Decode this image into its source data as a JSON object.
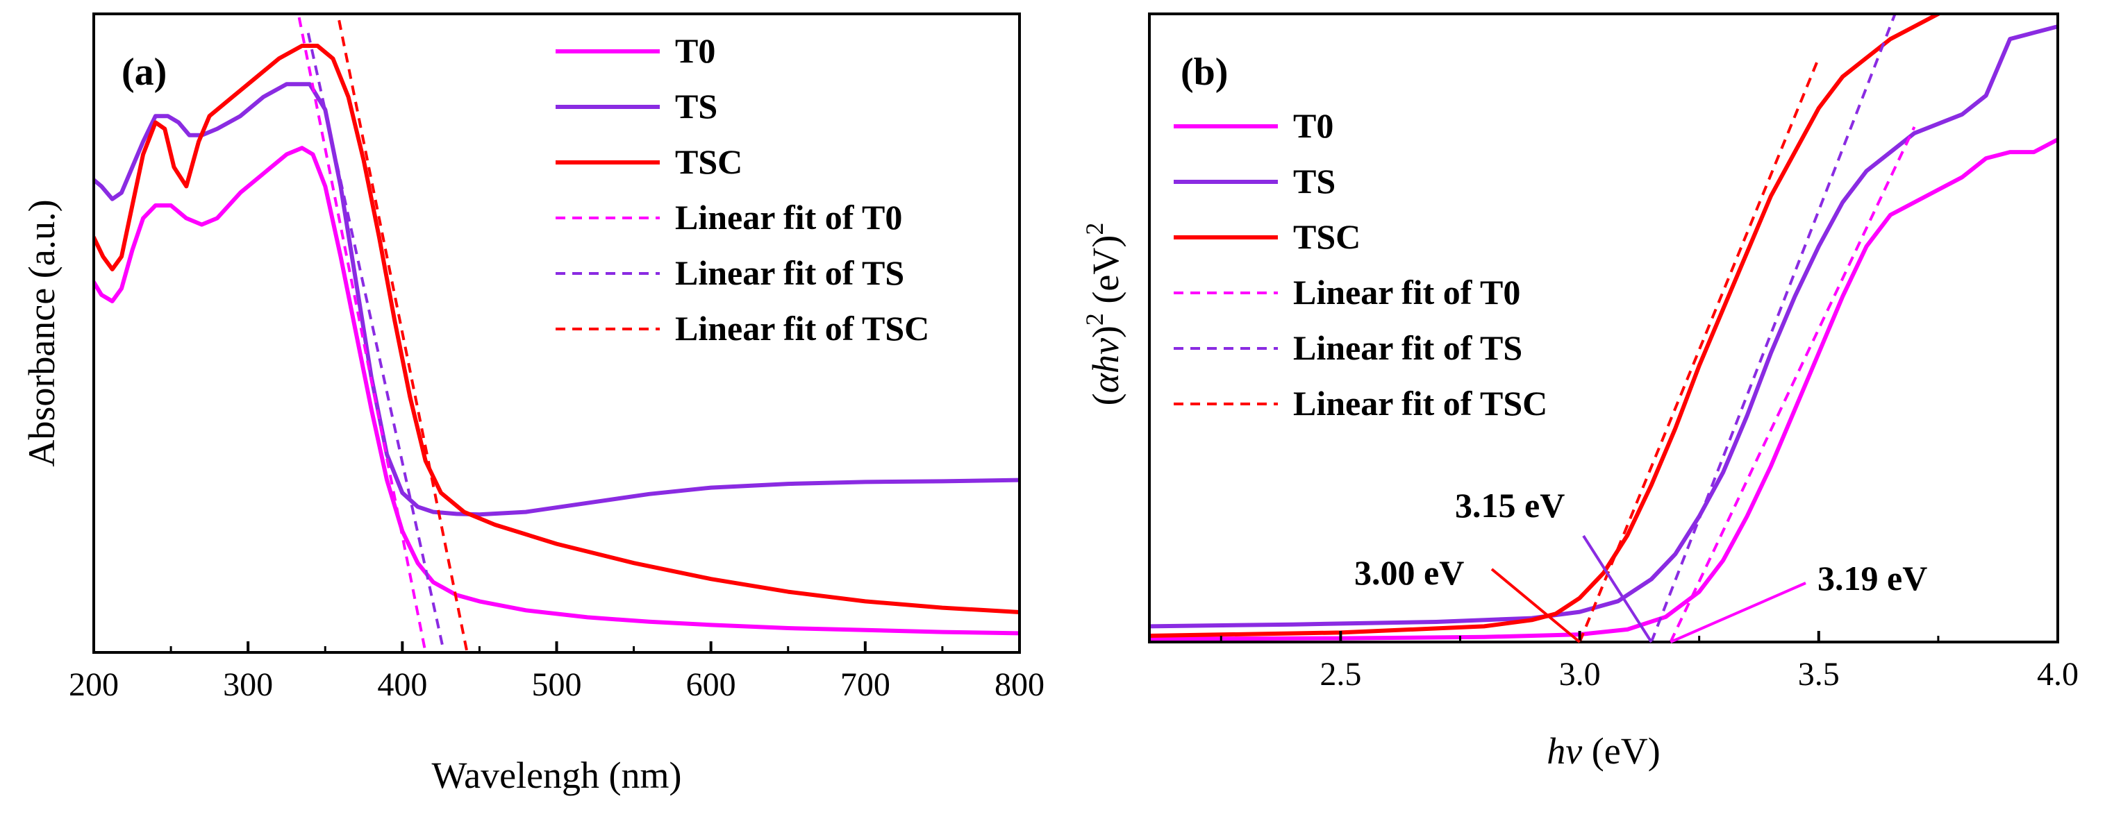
{
  "chart_data": [
    {
      "panel_label": "(a)",
      "type": "line",
      "title": "",
      "xlabel": "Wavelengh (nm)",
      "ylabel": "Absorbance (a.u.)",
      "xlim": [
        200,
        800
      ],
      "ylim": [
        0,
        1.0
      ],
      "xticks": [
        200,
        300,
        400,
        500,
        600,
        700,
        800
      ],
      "x_tick_labels": [
        "200",
        "300",
        "400",
        "500",
        "600",
        "700",
        "800"
      ],
      "y_ticks_shown": false,
      "grid": false,
      "legend_position": "top-right",
      "series": [
        {
          "name": "T0",
          "color": "#ff00ff",
          "style": "solid",
          "x": [
            200,
            205,
            212,
            218,
            225,
            232,
            240,
            250,
            260,
            270,
            280,
            295,
            310,
            325,
            335,
            342,
            350,
            360,
            370,
            380,
            390,
            400,
            410,
            420,
            435,
            450,
            480,
            520,
            560,
            600,
            650,
            700,
            750,
            800
          ],
          "y": [
            0.58,
            0.56,
            0.55,
            0.57,
            0.63,
            0.68,
            0.7,
            0.7,
            0.68,
            0.67,
            0.68,
            0.72,
            0.75,
            0.78,
            0.79,
            0.78,
            0.73,
            0.62,
            0.5,
            0.38,
            0.27,
            0.19,
            0.14,
            0.11,
            0.09,
            0.08,
            0.066,
            0.055,
            0.048,
            0.043,
            0.038,
            0.035,
            0.032,
            0.03
          ]
        },
        {
          "name": "TS",
          "color": "#8a2be2",
          "style": "solid",
          "x": [
            200,
            205,
            212,
            218,
            225,
            232,
            240,
            248,
            255,
            262,
            270,
            280,
            295,
            310,
            325,
            340,
            350,
            360,
            370,
            380,
            390,
            400,
            410,
            420,
            435,
            450,
            480,
            520,
            560,
            600,
            650,
            700,
            750,
            800
          ],
          "y": [
            0.74,
            0.73,
            0.71,
            0.72,
            0.76,
            0.8,
            0.84,
            0.84,
            0.83,
            0.81,
            0.81,
            0.82,
            0.84,
            0.87,
            0.89,
            0.89,
            0.85,
            0.73,
            0.58,
            0.43,
            0.31,
            0.25,
            0.228,
            0.22,
            0.217,
            0.216,
            0.22,
            0.234,
            0.248,
            0.258,
            0.264,
            0.267,
            0.268,
            0.27
          ]
        },
        {
          "name": "TSC",
          "color": "#ff0000",
          "style": "solid",
          "x": [
            200,
            206,
            212,
            218,
            225,
            232,
            240,
            246,
            252,
            260,
            268,
            275,
            290,
            305,
            320,
            335,
            345,
            355,
            365,
            375,
            385,
            395,
            405,
            415,
            425,
            440,
            460,
            500,
            550,
            600,
            650,
            700,
            750,
            800
          ],
          "y": [
            0.65,
            0.62,
            0.6,
            0.62,
            0.7,
            0.78,
            0.83,
            0.82,
            0.76,
            0.73,
            0.8,
            0.84,
            0.87,
            0.9,
            0.93,
            0.95,
            0.95,
            0.93,
            0.87,
            0.77,
            0.65,
            0.52,
            0.4,
            0.3,
            0.25,
            0.22,
            0.2,
            0.17,
            0.14,
            0.115,
            0.095,
            0.08,
            0.07,
            0.063
          ]
        },
        {
          "name": "Linear fit of T0",
          "color": "#ff00ff",
          "style": "dashed",
          "x": [
            331,
            415
          ],
          "y": [
            1.02,
            0.0
          ]
        },
        {
          "name": "Linear fit of TS",
          "color": "#8a2be2",
          "style": "dashed",
          "x": [
            339,
            427
          ],
          "y": [
            0.97,
            0.0
          ]
        },
        {
          "name": "Linear fit of TSC",
          "color": "#ff0000",
          "style": "dashed",
          "x": [
            359,
            442
          ],
          "y": [
            0.99,
            0.0
          ]
        }
      ]
    },
    {
      "panel_label": "(b)",
      "type": "line",
      "title": "",
      "xlabel_italic": "hv",
      "xlabel_rest": " (eV)",
      "ylabel_open": "(",
      "ylabel_alpha": "α",
      "ylabel_hv": "hv",
      "ylabel_close": ")",
      "ylabel_exp1": "2",
      "ylabel_units": " (eV)",
      "ylabel_exp2": "2",
      "xlim": [
        2.1,
        4.0
      ],
      "ylim": [
        0,
        1.0
      ],
      "xticks": [
        2.5,
        3.0,
        3.5,
        4.0
      ],
      "x_tick_labels": [
        "2.5",
        "3.0",
        "3.5",
        "4.0"
      ],
      "y_ticks_shown": false,
      "grid": false,
      "legend_position": "top-left",
      "series": [
        {
          "name": "T0",
          "color": "#ff00ff",
          "style": "solid",
          "x": [
            2.1,
            2.5,
            2.8,
            3.0,
            3.1,
            3.18,
            3.25,
            3.3,
            3.35,
            3.4,
            3.45,
            3.5,
            3.55,
            3.6,
            3.65,
            3.7,
            3.75,
            3.8,
            3.85,
            3.9,
            3.95,
            4.0
          ],
          "y": [
            0.005,
            0.006,
            0.008,
            0.012,
            0.02,
            0.04,
            0.08,
            0.13,
            0.2,
            0.28,
            0.37,
            0.46,
            0.55,
            0.63,
            0.68,
            0.7,
            0.72,
            0.74,
            0.77,
            0.78,
            0.78,
            0.8
          ]
        },
        {
          "name": "TS",
          "color": "#8a2be2",
          "style": "solid",
          "x": [
            2.1,
            2.4,
            2.7,
            2.9,
            3.0,
            3.08,
            3.15,
            3.2,
            3.25,
            3.3,
            3.35,
            3.4,
            3.45,
            3.5,
            3.55,
            3.6,
            3.65,
            3.7,
            3.8,
            3.85,
            3.9,
            3.95,
            4.0
          ],
          "y": [
            0.025,
            0.028,
            0.032,
            0.038,
            0.048,
            0.065,
            0.1,
            0.14,
            0.2,
            0.27,
            0.36,
            0.46,
            0.55,
            0.63,
            0.7,
            0.75,
            0.78,
            0.81,
            0.84,
            0.87,
            0.96,
            0.97,
            0.98
          ]
        },
        {
          "name": "TSC",
          "color": "#ff0000",
          "style": "solid",
          "x": [
            2.1,
            2.5,
            2.8,
            2.9,
            2.95,
            3.0,
            3.05,
            3.1,
            3.15,
            3.2,
            3.25,
            3.3,
            3.35,
            3.4,
            3.45,
            3.5,
            3.55,
            3.6,
            3.65,
            3.7,
            3.75,
            3.8
          ],
          "y": [
            0.01,
            0.015,
            0.025,
            0.035,
            0.045,
            0.07,
            0.11,
            0.17,
            0.25,
            0.34,
            0.44,
            0.53,
            0.62,
            0.71,
            0.78,
            0.85,
            0.9,
            0.93,
            0.96,
            0.98,
            1.0,
            1.02
          ]
        },
        {
          "name": "Linear fit of T0",
          "color": "#ff00ff",
          "style": "dashed",
          "x": [
            3.19,
            3.7
          ],
          "y": [
            0.0,
            0.82
          ]
        },
        {
          "name": "Linear fit of TS",
          "color": "#8a2be2",
          "style": "dashed",
          "x": [
            3.15,
            3.68
          ],
          "y": [
            0.0,
            1.04
          ]
        },
        {
          "name": "Linear fit of TSC",
          "color": "#ff0000",
          "style": "dashed",
          "x": [
            3.0,
            3.5
          ],
          "y": [
            0.0,
            0.93
          ]
        }
      ],
      "annotations": [
        {
          "text": "3.00 eV",
          "color": "#ff0000",
          "points_to_x": 3.0
        },
        {
          "text": "3.15 eV",
          "color": "#8a2be2",
          "points_to_x": 3.15
        },
        {
          "text": "3.19 eV",
          "color": "#ff00ff",
          "points_to_x": 3.19
        }
      ]
    }
  ]
}
